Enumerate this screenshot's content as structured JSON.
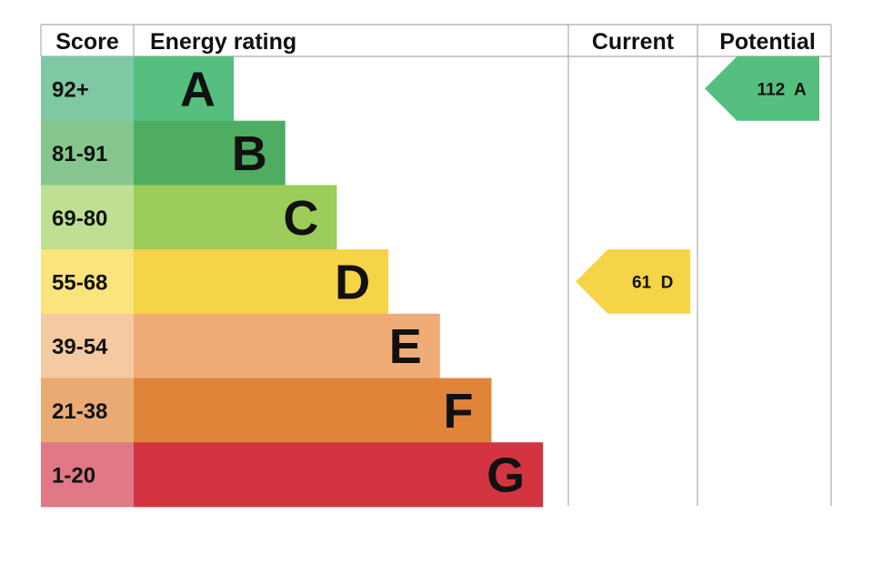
{
  "header": {
    "score": "Score",
    "energy_rating": "Energy rating",
    "current": "Current",
    "potential": "Potential"
  },
  "chart_data": {
    "type": "bar",
    "bands": [
      {
        "letter": "A",
        "range": "92+",
        "score_min": 92,
        "color": "#55bf7f",
        "score_color": "#7fc8a4"
      },
      {
        "letter": "B",
        "range": "81-91",
        "score_min": 81,
        "color": "#4fad61",
        "score_color": "#86c68e"
      },
      {
        "letter": "C",
        "range": "69-80",
        "score_min": 69,
        "color": "#9ccd5a",
        "score_color": "#bfe092"
      },
      {
        "letter": "D",
        "range": "55-68",
        "score_min": 55,
        "color": "#f6d447",
        "score_color": "#fbe47c"
      },
      {
        "letter": "E",
        "range": "39-54",
        "score_min": 39,
        "color": "#efac77",
        "score_color": "#f5c9a2"
      },
      {
        "letter": "F",
        "range": "21-38",
        "score_min": 21,
        "color": "#e0843a",
        "score_color": "#e9ab73"
      },
      {
        "letter": "G",
        "range": "1-20",
        "score_min": 1,
        "color": "#d43441",
        "score_color": "#e07886"
      }
    ],
    "current": {
      "value": 61,
      "band": "D",
      "label": "61  D",
      "color": "#f6d447"
    },
    "potential": {
      "value": 112,
      "band": "A",
      "label": "112  A",
      "color": "#55bf7f"
    }
  }
}
